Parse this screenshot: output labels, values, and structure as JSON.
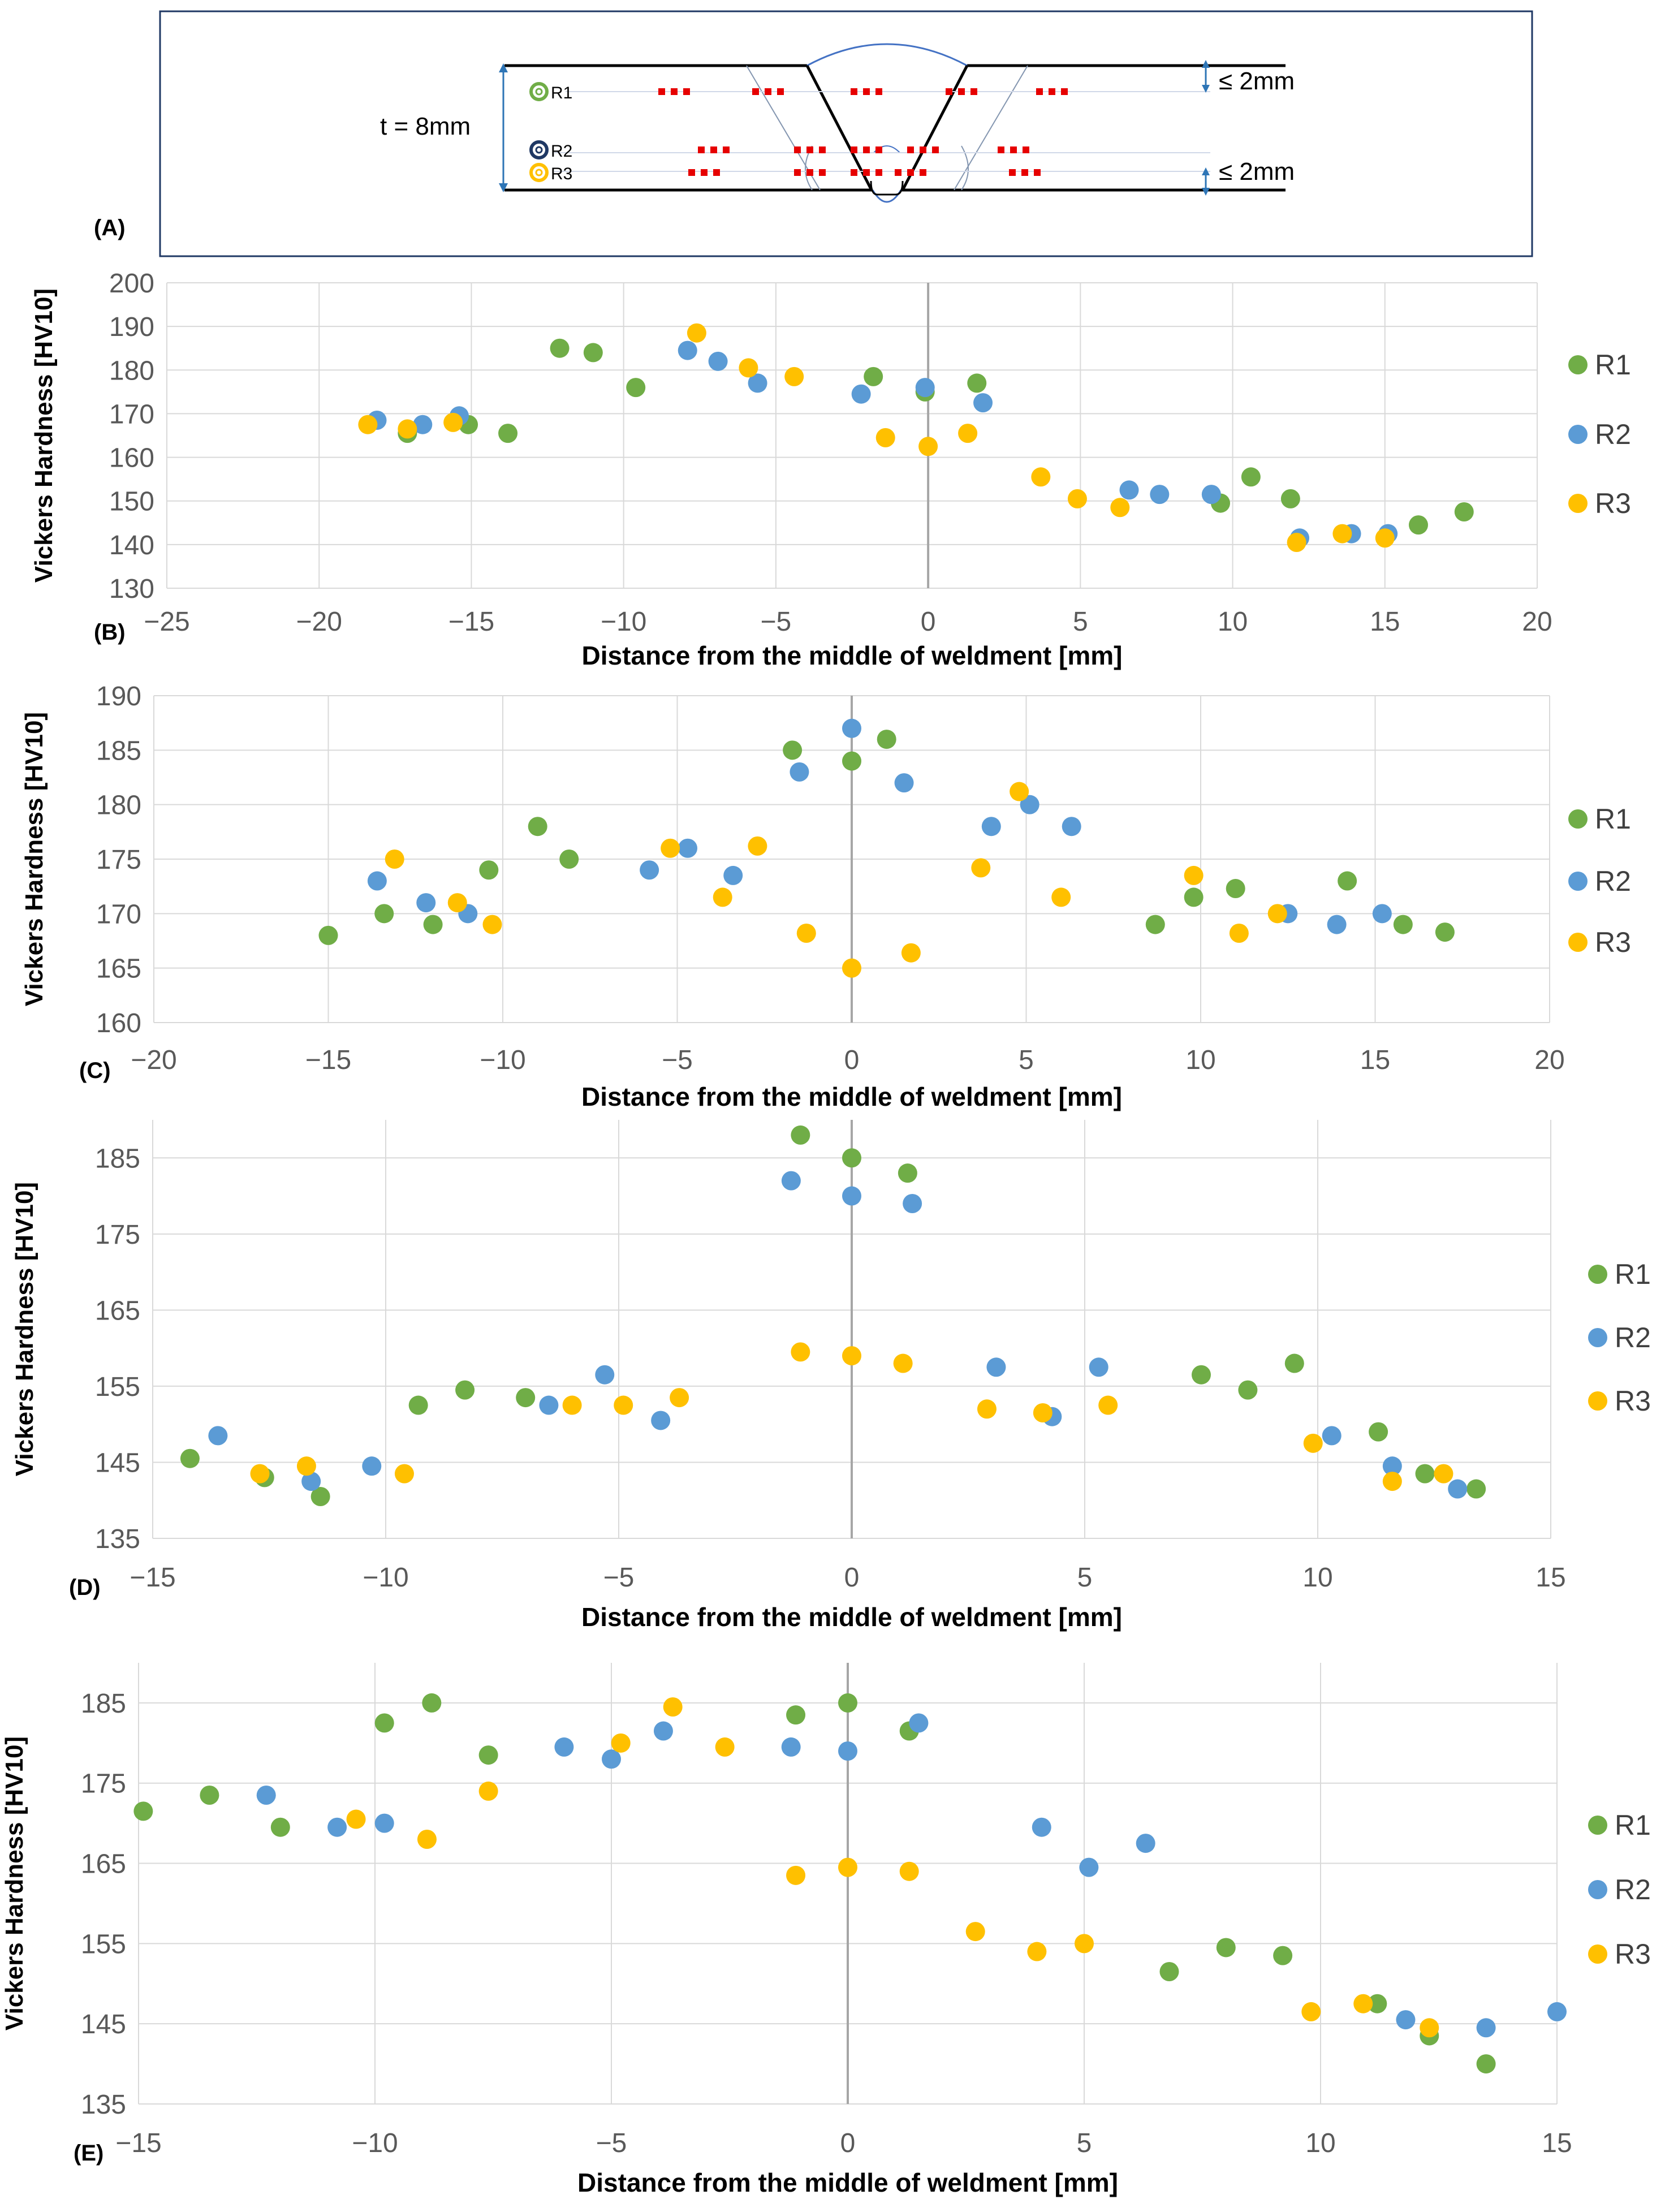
{
  "colors": {
    "R1": "#70ad47",
    "R2": "#5b9bd5",
    "R3": "#ffc000",
    "grid": "#d9d9d9",
    "zero_line": "#a6a6a6",
    "indent": "#e60000",
    "diagram_border": "#1f3864"
  },
  "diagram": {
    "panel_label": "(A)",
    "thickness_label": "t = 8mm",
    "top_offset_label": "≤ 2mm",
    "bottom_offset_label": "≤ 2mm",
    "rows": [
      {
        "id": "R1",
        "label": "R1"
      },
      {
        "id": "R2",
        "label": "R2"
      },
      {
        "id": "R3",
        "label": "R3"
      }
    ]
  },
  "chart_data": [
    {
      "type": "scatter",
      "panel_label": "(B)",
      "xlabel": "Distance from the middle of weldment [mm]",
      "ylabel": "Vickers Hardness [HV10]",
      "xlim": [
        -25,
        20
      ],
      "ylim": [
        130,
        200
      ],
      "xticks": [
        -25,
        -20,
        -15,
        -10,
        -5,
        0,
        5,
        10,
        15,
        20
      ],
      "yticks": [
        130,
        140,
        150,
        160,
        170,
        180,
        190,
        200
      ],
      "grid": true,
      "legend": "right",
      "series": [
        {
          "name": "R1",
          "x": [
            -17.1,
            -15.1,
            -13.8,
            -12.1,
            -11,
            -9.6,
            -1.8,
            -0.1,
            1.6,
            10.6,
            9.6,
            11.9,
            16.1,
            17.6
          ],
          "y": [
            165.5,
            167.5,
            165.5,
            185,
            184,
            176,
            178.5,
            175,
            177,
            155.5,
            149.5,
            150.5,
            144.5,
            147.5
          ]
        },
        {
          "name": "R2",
          "x": [
            -18.1,
            -16.6,
            -15.4,
            -7.9,
            -6.9,
            -5.6,
            -2.2,
            -0.1,
            1.8,
            6.6,
            7.6,
            9.3,
            12.2,
            13.9,
            15.1
          ],
          "y": [
            168.5,
            167.5,
            169.5,
            184.5,
            182,
            177,
            174.5,
            176,
            172.5,
            152.5,
            151.5,
            151.5,
            141.5,
            142.5,
            142.5
          ]
        },
        {
          "name": "R3",
          "x": [
            -18.4,
            -17.1,
            -15.6,
            -7.6,
            -5.9,
            -4.4,
            -1.4,
            0,
            1.3,
            3.7,
            4.9,
            6.3,
            12.1,
            13.6,
            15
          ],
          "y": [
            167.5,
            166.5,
            168,
            188.5,
            180.5,
            178.5,
            164.5,
            162.5,
            165.5,
            155.5,
            150.5,
            148.5,
            140.5,
            142.5,
            141.5
          ]
        }
      ]
    },
    {
      "type": "scatter",
      "panel_label": "(C)",
      "xlabel": "Distance from the middle of weldment [mm]",
      "ylabel": "Vickers Hardness [HV10]",
      "xlim": [
        -20,
        20
      ],
      "ylim": [
        160,
        190
      ],
      "xticks": [
        -20,
        -15,
        -10,
        -5,
        0,
        5,
        10,
        15,
        20
      ],
      "yticks": [
        160,
        165,
        170,
        175,
        180,
        185,
        190
      ],
      "grid": true,
      "legend": "right",
      "series": [
        {
          "name": "R1",
          "x": [
            -15,
            -13.4,
            -12,
            -10.4,
            -9,
            -8.1,
            -1.7,
            0,
            1,
            8.7,
            9.8,
            11,
            14.2,
            15.8,
            17
          ],
          "y": [
            168,
            170,
            169,
            174,
            178,
            175,
            185,
            184,
            186,
            169,
            171.5,
            172.3,
            173,
            169,
            168.3
          ]
        },
        {
          "name": "R2",
          "x": [
            -13.6,
            -12.2,
            -11,
            -5.8,
            -4.7,
            -3.4,
            -1.5,
            0,
            1.5,
            4,
            5.1,
            6.3,
            12.5,
            13.9,
            15.2
          ],
          "y": [
            173,
            171,
            170,
            174,
            176,
            173.5,
            183,
            187,
            182,
            178,
            180,
            178,
            170,
            169,
            170
          ]
        },
        {
          "name": "R3",
          "x": [
            -13.1,
            -11.3,
            -10.3,
            -5.2,
            -3.7,
            -2.7,
            -1.3,
            0,
            1.7,
            3.7,
            4.8,
            6,
            9.8,
            11.1,
            12.2
          ],
          "y": [
            175,
            171,
            169,
            176,
            171.5,
            176.2,
            168.2,
            165,
            166.4,
            174.2,
            181.2,
            171.5,
            173.5,
            168.2,
            170
          ]
        }
      ]
    },
    {
      "type": "scatter",
      "panel_label": "(D)",
      "xlabel": "Distance from the middle of weldment [mm]",
      "ylabel": "Vickers Hardness [HV10]",
      "xlim": [
        -15,
        15
      ],
      "ylim": [
        135,
        190
      ],
      "xticks": [
        -15,
        -10,
        -5,
        0,
        5,
        10,
        15
      ],
      "yticks": [
        135,
        145,
        155,
        165,
        175,
        185
      ],
      "grid": true,
      "legend": "right",
      "series": [
        {
          "name": "R1",
          "x": [
            -14.2,
            -12.6,
            -11.4,
            -9.3,
            -8.3,
            -7,
            -1.1,
            0,
            1.2,
            7.5,
            8.5,
            9.5,
            11.3,
            12.3,
            13.4
          ],
          "y": [
            145.5,
            143,
            140.5,
            152.5,
            154.5,
            153.5,
            188,
            185,
            183,
            156.5,
            154.5,
            158,
            149,
            143.5,
            141.5
          ]
        },
        {
          "name": "R2",
          "x": [
            -13.6,
            -11.6,
            -10.3,
            -6.5,
            -5.3,
            -4.1,
            -1.3,
            0,
            1.3,
            3.1,
            4.3,
            5.3,
            10.3,
            11.6,
            13
          ],
          "y": [
            148.5,
            142.5,
            144.5,
            152.5,
            156.5,
            150.5,
            182,
            180,
            179,
            157.5,
            151,
            157.5,
            148.5,
            144.5,
            141.5
          ]
        },
        {
          "name": "R3",
          "x": [
            -12.7,
            -11.7,
            -9.6,
            -6,
            -4.9,
            -3.7,
            -1.1,
            0,
            1.1,
            2.9,
            4.1,
            5.5,
            9.9,
            11.6,
            12.7
          ],
          "y": [
            143.5,
            144.5,
            143.5,
            152.5,
            152.5,
            153.5,
            159.5,
            159,
            158,
            152,
            151.5,
            152.5,
            147.5,
            142.5,
            143.5
          ]
        }
      ]
    },
    {
      "type": "scatter",
      "panel_label": "(E)",
      "xlabel": "Distance from the middle of weldment [mm]",
      "ylabel": "Vickers Hardness [HV10]",
      "xlim": [
        -15,
        15
      ],
      "ylim": [
        135,
        190
      ],
      "xticks": [
        -15,
        -10,
        -5,
        0,
        5,
        10,
        15
      ],
      "yticks": [
        135,
        145,
        155,
        165,
        175,
        185
      ],
      "grid": true,
      "legend": "right",
      "series": [
        {
          "name": "R1",
          "x": [
            -14.9,
            -13.5,
            -12,
            -9.8,
            -8.8,
            -7.6,
            -1.1,
            0,
            1.3,
            6.8,
            8,
            9.2,
            11.2,
            12.3,
            13.5
          ],
          "y": [
            171.5,
            173.5,
            169.5,
            182.5,
            185,
            178.5,
            183.5,
            185,
            181.5,
            151.5,
            154.5,
            153.5,
            147.5,
            143.5,
            140
          ]
        },
        {
          "name": "R2",
          "x": [
            -12.3,
            -10.8,
            -9.8,
            -6,
            -5,
            -3.9,
            -1.2,
            0,
            1.5,
            4.1,
            5.1,
            6.3,
            11.8,
            13.5,
            15
          ],
          "y": [
            173.5,
            169.5,
            170,
            179.5,
            178,
            181.5,
            179.5,
            179,
            182.5,
            169.5,
            164.5,
            167.5,
            145.5,
            144.5,
            146.5
          ]
        },
        {
          "name": "R3",
          "x": [
            -10.4,
            -8.9,
            -7.6,
            -4.8,
            -3.7,
            -2.6,
            -1.1,
            0,
            1.3,
            2.7,
            4,
            5,
            9.8,
            10.9,
            12.3
          ],
          "y": [
            170.5,
            168,
            174,
            180,
            184.5,
            179.5,
            163.5,
            164.5,
            164,
            156.5,
            154,
            155,
            146.5,
            147.5,
            144.5
          ]
        }
      ]
    }
  ]
}
